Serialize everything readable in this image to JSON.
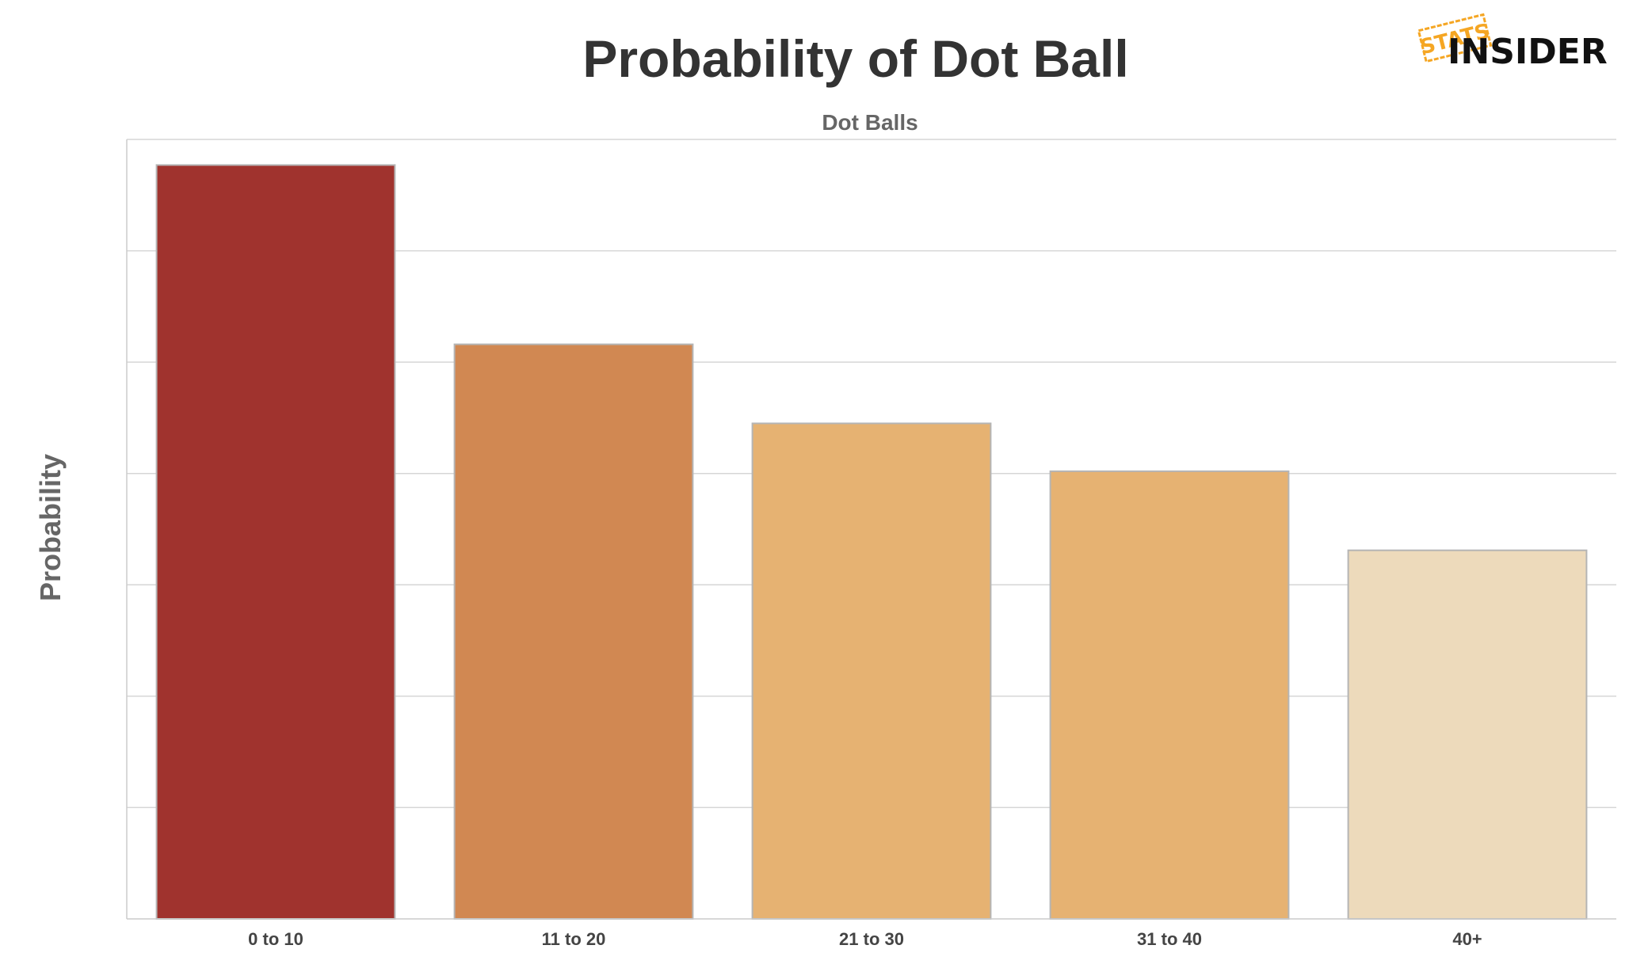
{
  "logo": {
    "stamp": "STATS",
    "wordmark": "INSIDER"
  },
  "chart_data": {
    "type": "bar",
    "title": "Probability of Dot Ball",
    "subtitle": "Dot Balls",
    "xlabel": "",
    "ylabel": "Probability",
    "categories": [
      "0 to 10",
      "11 to 20",
      "21 to 30",
      "31 to 40",
      "40+"
    ],
    "values": [
      0.677,
      0.516,
      0.445,
      0.402,
      0.331
    ],
    "colors": [
      "#a0332e",
      "#d18852",
      "#e6b272",
      "#e6b272",
      "#eddabb"
    ],
    "ylim": [
      0,
      0.7
    ],
    "y_gridlines": [
      0.1,
      0.2,
      0.3,
      0.4,
      0.5,
      0.6,
      0.7
    ],
    "y_tick_labels_visible": false,
    "grid": true,
    "legend": "none"
  }
}
